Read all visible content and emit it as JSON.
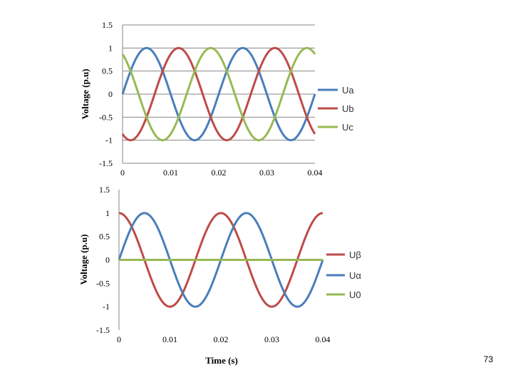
{
  "chart_data": [
    {
      "type": "line",
      "title": "",
      "xlabel": "",
      "ylabel": "Voltage (p.u)",
      "xlim": [
        0,
        0.04
      ],
      "ylim": [
        -1.5,
        1.5
      ],
      "x_ticks": [
        "0",
        "0.01",
        "0.02",
        "0.03",
        "0.04"
      ],
      "y_ticks": [
        "1.5",
        "1",
        "0.5",
        "0",
        "-0.5",
        "-1",
        "-1.5"
      ],
      "grid": "horizontal",
      "legend_position": "right",
      "frequency_hz": 50,
      "series": [
        {
          "name": "Ua",
          "color": "#4a7ebb",
          "amplitude": 1,
          "phase_deg": 0,
          "x": [
            0,
            0.005,
            0.01,
            0.015,
            0.02,
            0.025,
            0.03,
            0.035,
            0.04
          ],
          "y": [
            0,
            1,
            0,
            -1,
            0,
            1,
            0,
            -1,
            0
          ]
        },
        {
          "name": "Ub",
          "color": "#be4b48",
          "amplitude": 1,
          "phase_deg": -120,
          "x": [
            0,
            0.005,
            0.01,
            0.015,
            0.02,
            0.025,
            0.03,
            0.035,
            0.04
          ],
          "y": [
            -0.87,
            -0.5,
            0.87,
            0.5,
            -0.87,
            -0.5,
            0.87,
            0.5,
            -0.87
          ]
        },
        {
          "name": "Uc",
          "color": "#98b954",
          "amplitude": 1,
          "phase_deg": 120,
          "x": [
            0,
            0.005,
            0.01,
            0.015,
            0.02,
            0.025,
            0.03,
            0.035,
            0.04
          ],
          "y": [
            0.87,
            -0.5,
            -0.87,
            0.5,
            0.87,
            -0.5,
            -0.87,
            0.5,
            0.87
          ]
        }
      ]
    },
    {
      "type": "line",
      "title": "",
      "xlabel": "Time (s)",
      "ylabel": "Voltage (p.u)",
      "xlim": [
        0,
        0.04
      ],
      "ylim": [
        -1.5,
        1.5
      ],
      "x_ticks": [
        "0",
        "0.01",
        "0.02",
        "0.03",
        "0.04"
      ],
      "y_ticks": [
        "1.5",
        "1",
        "0.5",
        "0",
        "-0.5",
        "-1",
        "-1.5"
      ],
      "grid": "none",
      "legend_position": "right",
      "frequency_hz": 50,
      "series": [
        {
          "name": "Uβ",
          "color": "#be4b48",
          "amplitude": 1,
          "phase_deg": 90,
          "x": [
            0,
            0.005,
            0.01,
            0.015,
            0.02,
            0.025,
            0.03,
            0.035,
            0.04
          ],
          "y": [
            1,
            0,
            -1,
            0,
            1,
            0,
            -1,
            0,
            1
          ]
        },
        {
          "name": "Uα",
          "color": "#4a7ebb",
          "amplitude": 1,
          "phase_deg": 0,
          "x": [
            0,
            0.005,
            0.01,
            0.015,
            0.02,
            0.025,
            0.03,
            0.035,
            0.04
          ],
          "y": [
            0,
            1,
            0,
            -1,
            0,
            1,
            0,
            -1,
            0
          ]
        },
        {
          "name": "U0",
          "color": "#98b954",
          "amplitude": 0,
          "phase_deg": 0,
          "x": [
            0,
            0.01,
            0.02,
            0.03,
            0.04
          ],
          "y": [
            0,
            0,
            0,
            0,
            0
          ]
        }
      ]
    }
  ],
  "page_number": "73"
}
